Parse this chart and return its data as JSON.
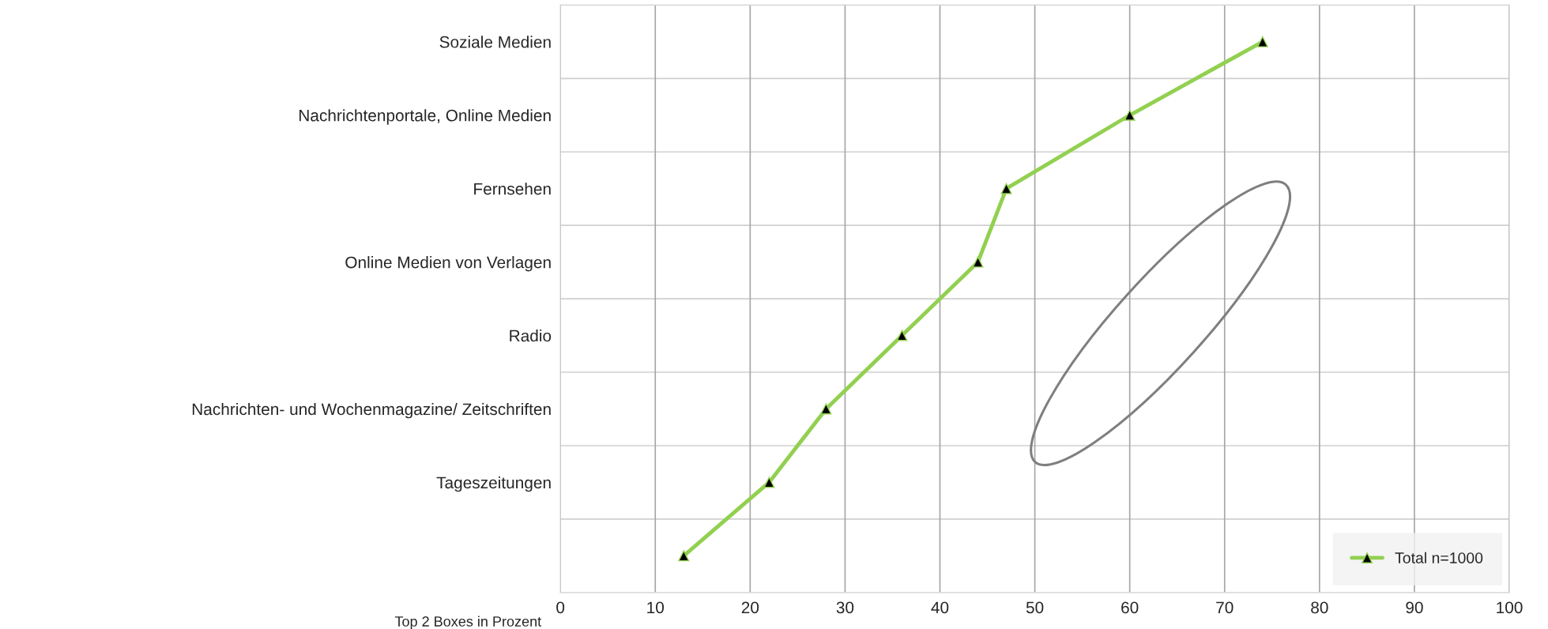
{
  "chart_data": {
    "type": "line",
    "orientation": "horizontal",
    "categories": [
      "Soziale Medien",
      "Nachrichtenportale, Online Medien",
      "Fernsehen",
      "Online Medien von Verlagen",
      "Radio",
      "Nachrichten- und Wochenmagazine/ Zeitschriften",
      "Tageszeitungen",
      null
    ],
    "series": [
      {
        "name": "Total n=1000",
        "color": "#92d050",
        "values": [
          74,
          60,
          47,
          44,
          36,
          28,
          22,
          13
        ]
      }
    ],
    "xlabel": "Top 2 Boxes in Prozent",
    "xlim": [
      0,
      100
    ],
    "xticks": [
      0,
      10,
      20,
      30,
      40,
      50,
      60,
      70,
      80,
      90,
      100
    ],
    "grid": true,
    "legend": "bottom right",
    "marker": "triangle",
    "line_style": "solid"
  }
}
